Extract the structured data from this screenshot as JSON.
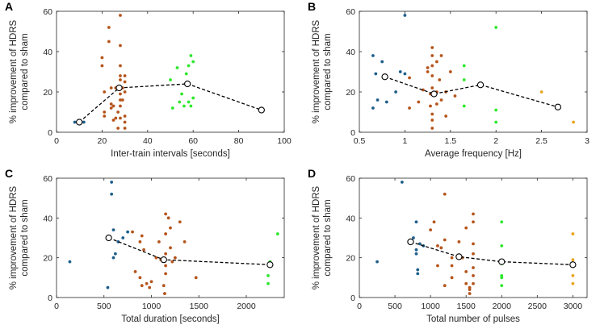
{
  "figure": {
    "colors": {
      "blue": "#1f5f8b",
      "orange": "#b5551d",
      "green": "#2ee82e",
      "yellow": "#eba51a",
      "trend": "#000000"
    }
  },
  "chart_data": [
    {
      "panel_label": "A",
      "type": "scatter",
      "xlabel": "Inter-train intervals [seconds]",
      "ylabel_line1": "% improvement of HDRS",
      "ylabel_line2": "compared to sham",
      "xlim": [
        0,
        100
      ],
      "ylim": [
        0,
        60
      ],
      "xticks": [
        "0",
        "20",
        "40",
        "60",
        "80",
        "100"
      ],
      "yticks": [
        "0",
        "20",
        "40",
        "60"
      ],
      "xtick_values": [
        0,
        20,
        40,
        60,
        80,
        100
      ],
      "ytick_values": [
        0,
        20,
        40,
        60
      ],
      "series": [
        {
          "name": "blue",
          "color": "blue",
          "points": [
            [
              8,
              5
            ],
            [
              12,
              5
            ]
          ]
        },
        {
          "name": "orange",
          "color": "orange",
          "points": [
            [
              20,
              37
            ],
            [
              20,
              33
            ],
            [
              21,
              20
            ],
            [
              21,
              10
            ],
            [
              21,
              8
            ],
            [
              23,
              52
            ],
            [
              23,
              45
            ],
            [
              24,
              22
            ],
            [
              24,
              14
            ],
            [
              24,
              12
            ],
            [
              25,
              6
            ],
            [
              25,
              13
            ],
            [
              26,
              22
            ],
            [
              26,
              7
            ],
            [
              27,
              10
            ],
            [
              27,
              2
            ],
            [
              28,
              58
            ],
            [
              28,
              43
            ],
            [
              28,
              33
            ],
            [
              28,
              28
            ],
            [
              28,
              26
            ],
            [
              28,
              19
            ],
            [
              28,
              16
            ],
            [
              28,
              13
            ],
            [
              28,
              7
            ],
            [
              29,
              22
            ],
            [
              29,
              16
            ],
            [
              30,
              28
            ],
            [
              30,
              25
            ],
            [
              30,
              20
            ],
            [
              30,
              8
            ],
            [
              30,
              5
            ],
            [
              30,
              2
            ]
          ]
        },
        {
          "name": "green",
          "color": "green",
          "points": [
            [
              50,
              26
            ],
            [
              51,
              12
            ],
            [
              53,
              32
            ],
            [
              54,
              15
            ],
            [
              55,
              19
            ],
            [
              56,
              13
            ],
            [
              57,
              29
            ],
            [
              58,
              33
            ],
            [
              58,
              15
            ],
            [
              59,
              38
            ],
            [
              59,
              13
            ],
            [
              60,
              35
            ],
            [
              60,
              17
            ]
          ]
        },
        {
          "name": "yellow",
          "color": "yellow",
          "points": []
        }
      ],
      "trend": {
        "x": [
          10,
          27.5,
          57.5,
          90
        ],
        "y": [
          5,
          22,
          24,
          11
        ]
      }
    },
    {
      "panel_label": "B",
      "type": "scatter",
      "xlabel": "Average frequency [Hz]",
      "ylabel_line1": "% improvement of HDRS",
      "ylabel_line2": "compared to sham",
      "xlim": [
        0.5,
        3
      ],
      "ylim": [
        0,
        60
      ],
      "xticks": [
        "0.5",
        "1",
        "1.5",
        "2",
        "2.5",
        "3"
      ],
      "yticks": [
        "0",
        "20",
        "40",
        "60"
      ],
      "xtick_values": [
        0.5,
        1,
        1.5,
        2,
        2.5,
        3
      ],
      "ytick_values": [
        0,
        20,
        40,
        60
      ],
      "series": [
        {
          "name": "blue",
          "color": "blue",
          "points": [
            [
              0.65,
              38
            ],
            [
              0.65,
              12
            ],
            [
              0.68,
              29
            ],
            [
              0.7,
              16
            ],
            [
              0.75,
              35
            ],
            [
              0.8,
              15
            ],
            [
              0.9,
              20
            ],
            [
              0.95,
              30
            ],
            [
              1.0,
              58
            ],
            [
              1.0,
              29
            ]
          ]
        },
        {
          "name": "orange",
          "color": "orange",
          "points": [
            [
              1.05,
              27
            ],
            [
              1.05,
              12
            ],
            [
              1.15,
              15
            ],
            [
              1.2,
              21
            ],
            [
              1.25,
              32
            ],
            [
              1.25,
              30
            ],
            [
              1.28,
              19
            ],
            [
              1.28,
              13
            ],
            [
              1.3,
              42
            ],
            [
              1.3,
              38
            ],
            [
              1.3,
              33
            ],
            [
              1.3,
              28
            ],
            [
              1.3,
              22
            ],
            [
              1.3,
              9
            ],
            [
              1.3,
              6
            ],
            [
              1.3,
              2
            ],
            [
              1.35,
              35
            ],
            [
              1.35,
              20
            ],
            [
              1.35,
              14
            ],
            [
              1.38,
              26
            ],
            [
              1.4,
              16
            ],
            [
              1.4,
              38
            ],
            [
              1.45,
              20
            ],
            [
              1.45,
              8
            ],
            [
              1.5,
              30
            ],
            [
              1.55,
              18
            ]
          ]
        },
        {
          "name": "green",
          "color": "green",
          "points": [
            [
              1.65,
              33
            ],
            [
              1.65,
              26
            ],
            [
              1.65,
              13
            ],
            [
              2.0,
              52
            ],
            [
              2.0,
              11
            ],
            [
              2.0,
              5
            ]
          ]
        },
        {
          "name": "yellow",
          "color": "yellow",
          "points": [
            [
              2.5,
              20
            ],
            [
              2.85,
              5
            ]
          ]
        }
      ],
      "trend": {
        "x": [
          0.78,
          1.32,
          1.83,
          2.68
        ],
        "y": [
          27.5,
          19,
          23.5,
          12.5
        ]
      }
    },
    {
      "panel_label": "C",
      "type": "scatter",
      "xlabel": "Total duration [seconds]",
      "ylabel_line1": "% improvement of HDRS",
      "ylabel_line2": "compared to sham",
      "xlim": [
        0,
        2400
      ],
      "ylim": [
        0,
        60
      ],
      "xticks": [
        "0",
        "500",
        "1000",
        "1500",
        "2000"
      ],
      "yticks": [
        "0",
        "20",
        "40",
        "60"
      ],
      "xtick_values": [
        0,
        500,
        1000,
        1500,
        2000
      ],
      "ytick_values": [
        0,
        20,
        40,
        60
      ],
      "series": [
        {
          "name": "blue",
          "color": "blue",
          "points": [
            [
              140,
              18
            ],
            [
              540,
              5
            ],
            [
              580,
              58
            ],
            [
              580,
              52
            ],
            [
              600,
              34
            ],
            [
              600,
              20
            ],
            [
              620,
              22
            ],
            [
              650,
              28
            ],
            [
              700,
              30
            ],
            [
              750,
              33
            ]
          ]
        },
        {
          "name": "orange",
          "color": "orange",
          "points": [
            [
              800,
              33
            ],
            [
              830,
              13
            ],
            [
              880,
              28
            ],
            [
              880,
              10
            ],
            [
              900,
              31
            ],
            [
              900,
              6
            ],
            [
              920,
              24
            ],
            [
              950,
              7
            ],
            [
              980,
              5
            ],
            [
              1000,
              8
            ],
            [
              1050,
              20
            ],
            [
              1080,
              28
            ],
            [
              1100,
              19
            ],
            [
              1130,
              6
            ],
            [
              1140,
              2
            ],
            [
              1150,
              42
            ],
            [
              1150,
              32
            ],
            [
              1150,
              22
            ],
            [
              1150,
              16
            ],
            [
              1150,
              12
            ],
            [
              1180,
              40
            ],
            [
              1200,
              35
            ],
            [
              1200,
              25
            ],
            [
              1220,
              18
            ],
            [
              1250,
              20
            ],
            [
              1300,
              38
            ],
            [
              1350,
              28
            ],
            [
              1470,
              10
            ]
          ]
        },
        {
          "name": "green",
          "color": "green",
          "points": [
            [
              2230,
              11
            ],
            [
              2230,
              7
            ],
            [
              2250,
              18
            ],
            [
              2330,
              32
            ]
          ]
        },
        {
          "name": "yellow",
          "color": "yellow",
          "points": []
        }
      ],
      "trend": {
        "x": [
          550,
          1130,
          2250
        ],
        "y": [
          30,
          19,
          16.5
        ]
      }
    },
    {
      "panel_label": "D",
      "type": "scatter",
      "xlabel": "Total number of pulses",
      "ylabel_line1": "% improvement of HDRS",
      "ylabel_line2": "compared to sham",
      "xlim": [
        0,
        3200
      ],
      "ylim": [
        0,
        60
      ],
      "xticks": [
        "0",
        "500",
        "1000",
        "1500",
        "2000",
        "2500",
        "3000"
      ],
      "yticks": [
        "0",
        "20",
        "40",
        "60"
      ],
      "xtick_values": [
        0,
        500,
        1000,
        1500,
        2000,
        2500,
        3000
      ],
      "ytick_values": [
        0,
        20,
        40,
        60
      ],
      "series": [
        {
          "name": "blue",
          "color": "blue",
          "points": [
            [
              250,
              18
            ],
            [
              600,
              58
            ],
            [
              760,
              30
            ],
            [
              800,
              38
            ],
            [
              800,
              24
            ],
            [
              800,
              22
            ],
            [
              820,
              14
            ],
            [
              820,
              12
            ],
            [
              850,
              27
            ],
            [
              900,
              26
            ]
          ]
        },
        {
          "name": "orange",
          "color": "orange",
          "points": [
            [
              1000,
              34
            ],
            [
              1050,
              38
            ],
            [
              1100,
              26
            ],
            [
              1100,
              16
            ],
            [
              1150,
              25
            ],
            [
              1200,
              52
            ],
            [
              1200,
              29
            ],
            [
              1200,
              6
            ],
            [
              1300,
              20
            ],
            [
              1300,
              16
            ],
            [
              1300,
              10
            ],
            [
              1400,
              28
            ],
            [
              1450,
              20
            ],
            [
              1500,
              35
            ],
            [
              1500,
              13
            ],
            [
              1500,
              7
            ],
            [
              1550,
              5
            ],
            [
              1550,
              4
            ],
            [
              1550,
              2
            ],
            [
              1600,
              42
            ],
            [
              1600,
              38
            ],
            [
              1600,
              27
            ],
            [
              1600,
              22
            ],
            [
              1600,
              15
            ],
            [
              1600,
              11
            ],
            [
              1600,
              7
            ]
          ]
        },
        {
          "name": "green",
          "color": "green",
          "points": [
            [
              2000,
              38
            ],
            [
              2000,
              26
            ],
            [
              2000,
              17
            ],
            [
              2000,
              11
            ],
            [
              2000,
              10
            ],
            [
              2000,
              6
            ]
          ]
        },
        {
          "name": "yellow",
          "color": "yellow",
          "points": [
            [
              3000,
              32
            ],
            [
              3000,
              19
            ],
            [
              3000,
              11
            ],
            [
              3000,
              7
            ]
          ]
        }
      ],
      "trend": {
        "x": [
          720,
          1400,
          2000,
          3000
        ],
        "y": [
          28,
          20.5,
          18,
          16.5
        ]
      }
    }
  ]
}
